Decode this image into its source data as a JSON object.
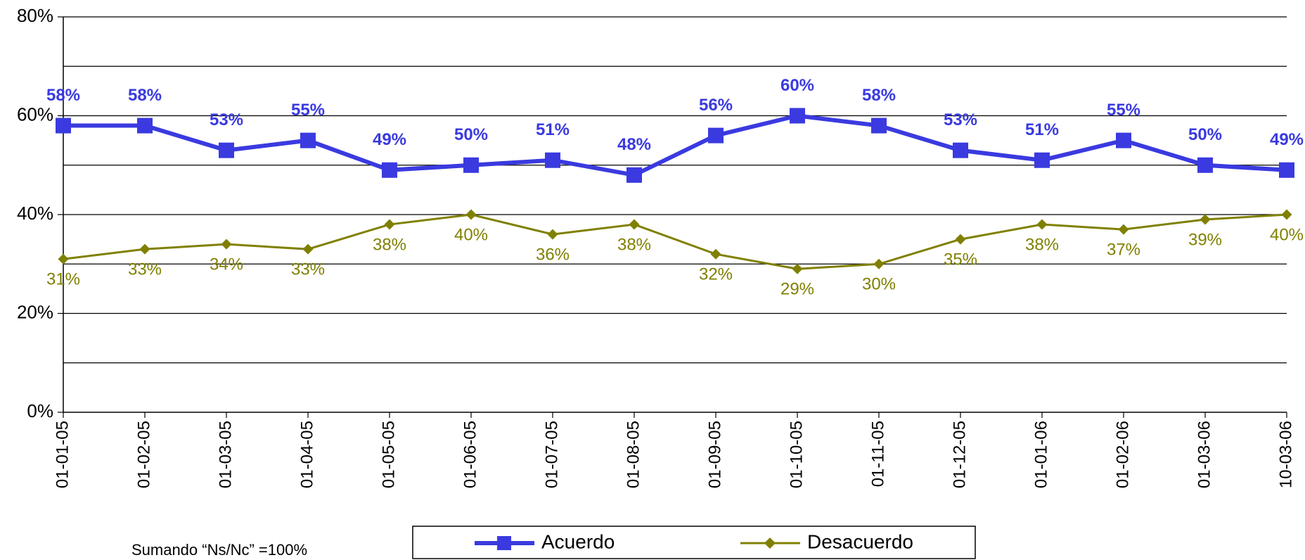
{
  "chart_data": {
    "type": "line",
    "categories": [
      "01-01-05",
      "01-02-05",
      "01-03-05",
      "01-04-05",
      "01-05-05",
      "01-06-05",
      "01-07-05",
      "01-08-05",
      "01-09-05",
      "01-10-05",
      "01-11-05",
      "01-12-05",
      "01-01-06",
      "01-02-06",
      "01-03-06",
      "10-03-06"
    ],
    "series": [
      {
        "name": "Acuerdo",
        "color": "#3a3ae0",
        "marker": "square",
        "values": [
          58,
          58,
          53,
          55,
          49,
          50,
          51,
          48,
          56,
          60,
          58,
          53,
          51,
          55,
          50,
          49
        ],
        "value_labels": [
          "58%",
          "58%",
          "53%",
          "55%",
          "49%",
          "50%",
          "51%",
          "48%",
          "56%",
          "60%",
          "58%",
          "53%",
          "51%",
          "55%",
          "50%",
          "49%"
        ]
      },
      {
        "name": "Desacuerdo",
        "color": "#808000",
        "marker": "diamond",
        "values": [
          31,
          33,
          34,
          33,
          38,
          40,
          36,
          38,
          32,
          29,
          30,
          35,
          38,
          37,
          39,
          40
        ],
        "value_labels": [
          "31%",
          "33%",
          "34%",
          "33%",
          "38%",
          "40%",
          "36%",
          "38%",
          "32%",
          "29%",
          "30%",
          "35%",
          "38%",
          "37%",
          "39%",
          "40%"
        ]
      }
    ],
    "ylim": [
      0,
      80
    ],
    "yticks": [
      {
        "value": 0,
        "label": "0%"
      },
      {
        "value": 20,
        "label": "20%"
      },
      {
        "value": 40,
        "label": "40%"
      },
      {
        "value": 60,
        "label": "60%"
      },
      {
        "value": 80,
        "label": "80%"
      }
    ],
    "y_minor_grid": [
      10,
      30,
      50,
      70
    ],
    "grid": true,
    "legend": "bottom",
    "note": "Sumando “Ns/Nc” =100%"
  }
}
